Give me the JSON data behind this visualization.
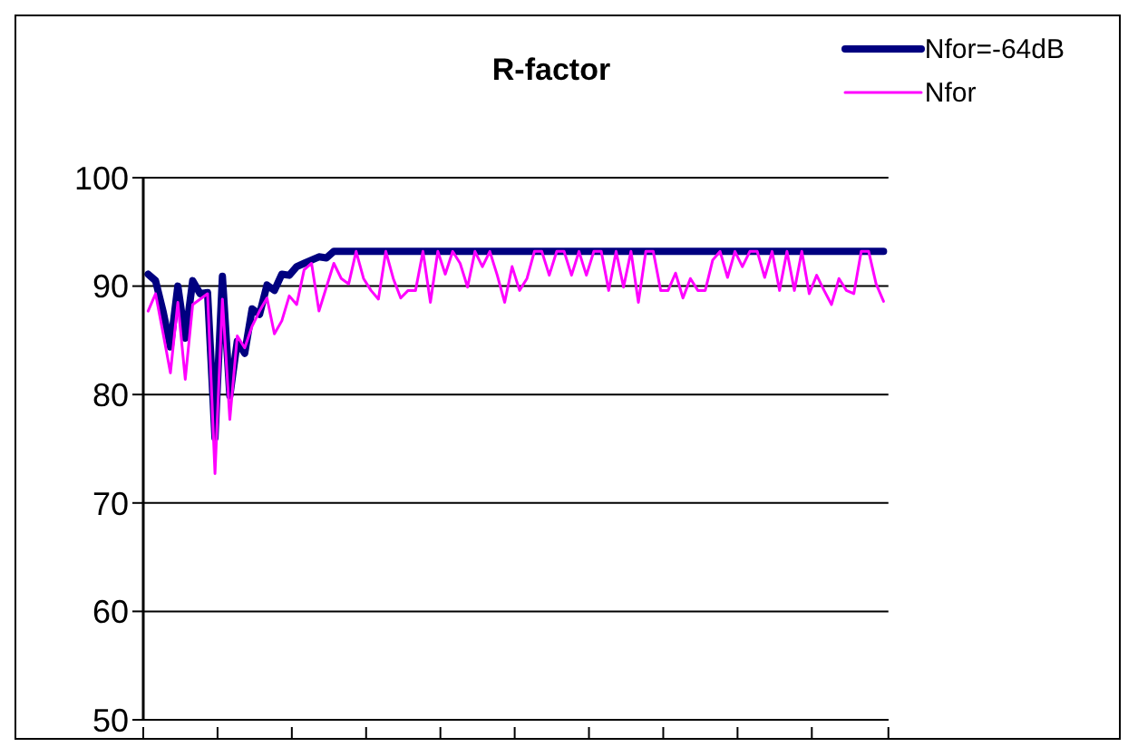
{
  "chart_data": {
    "type": "line",
    "title": "R-factor",
    "categories": [
      null,
      null,
      null,
      null,
      null,
      null,
      null,
      null,
      null,
      null,
      null,
      null,
      null,
      null,
      null,
      null,
      null,
      null,
      null,
      null,
      null,
      null,
      null,
      null,
      null,
      null,
      null,
      null,
      null,
      null,
      null,
      null,
      null,
      null,
      null,
      null,
      null,
      null,
      null,
      null,
      null,
      null,
      null,
      null,
      null,
      null,
      null,
      null,
      null,
      null,
      null,
      null,
      null,
      null,
      null,
      null,
      null,
      null,
      null,
      null,
      null,
      null,
      null,
      null,
      null,
      null,
      null,
      null,
      null,
      null,
      null,
      null,
      null,
      null,
      null,
      null,
      null,
      null,
      null,
      null,
      null,
      null,
      null,
      null,
      null,
      null,
      null,
      null,
      null,
      null,
      null,
      null,
      null,
      null,
      null,
      null,
      null,
      null,
      null,
      null
    ],
    "series": [
      {
        "name": "Nfor=-64dB",
        "color": "#000080",
        "values": [
          91.1,
          90.5,
          87.7,
          84.4,
          90.0,
          85.2,
          90.5,
          89.3,
          89.4,
          76.0,
          90.9,
          79.9,
          84.9,
          83.8,
          87.9,
          87.4,
          90.1,
          89.6,
          91.1,
          91.0,
          91.8,
          92.1,
          92.4,
          92.7,
          92.6,
          93.2,
          93.2,
          93.2,
          93.2,
          93.2,
          93.2,
          93.2,
          93.2,
          93.2,
          93.2,
          93.2,
          93.2,
          93.2,
          93.2,
          93.2,
          93.2,
          93.2,
          93.2,
          93.2,
          93.2,
          93.2,
          93.2,
          93.2,
          93.2,
          93.2,
          93.2,
          93.2,
          93.2,
          93.2,
          93.2,
          93.2,
          93.2,
          93.2,
          93.2,
          93.2,
          93.2,
          93.2,
          93.2,
          93.2,
          93.2,
          93.2,
          93.2,
          93.2,
          93.2,
          93.2,
          93.2,
          93.2,
          93.2,
          93.2,
          93.2,
          93.2,
          93.2,
          93.2,
          93.2,
          93.2,
          93.2,
          93.2,
          93.2,
          93.2,
          93.2,
          93.2,
          93.2,
          93.2,
          93.2,
          93.2,
          93.2,
          93.2,
          93.2,
          93.2,
          93.2,
          93.2,
          93.2,
          93.2,
          93.2,
          93.2
        ]
      },
      {
        "name": "Nfor",
        "color": "#ff00ff",
        "values": [
          87.7,
          89.3,
          85.7,
          82.0,
          88.5,
          81.4,
          88.3,
          88.8,
          89.3,
          72.7,
          88.8,
          77.7,
          85.4,
          84.3,
          86.3,
          87.7,
          88.9,
          85.6,
          86.8,
          89.1,
          88.3,
          91.5,
          92.1,
          87.7,
          89.9,
          92.1,
          90.7,
          90.2,
          93.2,
          90.7,
          89.6,
          88.8,
          93.2,
          90.7,
          88.9,
          89.6,
          89.6,
          93.2,
          88.5,
          93.2,
          91.1,
          93.2,
          92.1,
          89.9,
          93.2,
          91.8,
          93.2,
          91.0,
          88.5,
          91.8,
          89.6,
          90.7,
          93.2,
          93.2,
          91.0,
          93.2,
          93.2,
          91.0,
          93.2,
          91.0,
          93.2,
          93.2,
          89.6,
          93.2,
          89.9,
          93.2,
          88.5,
          93.2,
          93.2,
          89.6,
          89.6,
          91.2,
          88.9,
          90.7,
          89.6,
          89.6,
          92.4,
          93.2,
          90.8,
          93.2,
          91.8,
          93.2,
          93.2,
          90.8,
          93.2,
          89.6,
          93.2,
          89.6,
          93.2,
          89.3,
          91.0,
          89.6,
          88.3,
          90.7,
          89.6,
          89.3,
          93.2,
          93.2,
          90.2,
          88.6
        ]
      }
    ],
    "ylim": [
      50,
      100
    ],
    "yticks": [
      50,
      60,
      70,
      80,
      90,
      100
    ],
    "grid": "y",
    "legend": "top right",
    "marker": "none",
    "line_style": "solid"
  }
}
